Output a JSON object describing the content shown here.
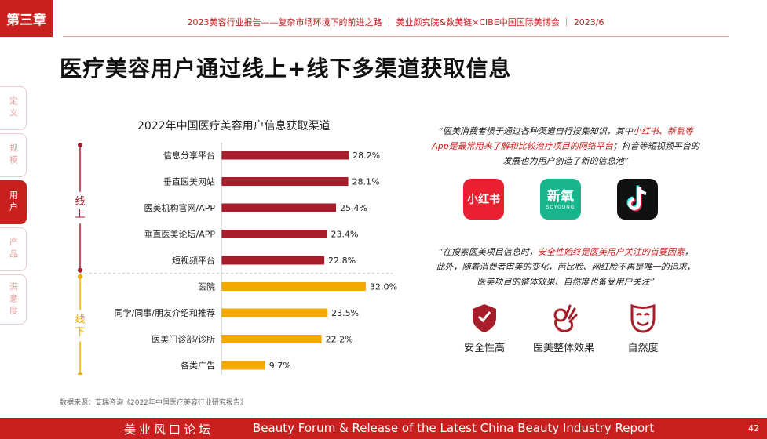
{
  "chapter": "第三章",
  "header": "2023美容行业报告——复杂市场环境下的前进之路 ｜ 美业颜究院&数美链×CIBE中国国际美博会 ｜ 2023/6",
  "title": "医疗美容用户通过线上+线下多渠道获取信息",
  "side_tabs": [
    {
      "label": "定义",
      "active": false
    },
    {
      "label": "规模",
      "active": false
    },
    {
      "label": "用户",
      "active": true
    },
    {
      "label": "产品",
      "active": false
    },
    {
      "label": "满意度",
      "active": false
    }
  ],
  "chart_data": {
    "type": "bar",
    "orientation": "horizontal",
    "title": "2022年中国医疗美容用户信息获取渠道",
    "groups": [
      {
        "name": "线上",
        "color": "#a61e2a",
        "categories": [
          "信息分享平台",
          "垂直医美网站",
          "医美机构官网/APP",
          "垂直医美论坛/APP",
          "短视频平台"
        ],
        "values": [
          28.2,
          28.1,
          25.4,
          23.4,
          22.8
        ]
      },
      {
        "name": "线下",
        "color": "#f5a800",
        "categories": [
          "医院",
          "同学/同事/朋友介绍和推荐",
          "医美门诊部/诊所",
          "各类广告"
        ],
        "values": [
          32.0,
          23.5,
          22.2,
          9.7
        ]
      }
    ],
    "value_suffix": "%",
    "xlim": [
      0,
      40
    ]
  },
  "quote1": {
    "part1": "“医美消费者惯于通过各种渠道自行搜集知识，其中",
    "highlight": "小红书、新氧等App是最常用来了解和比较治疗项目的网络平台",
    "part2": "；抖音等短视频平台的发展也为用户创造了新的信息池”"
  },
  "apps": [
    {
      "name": "小红书",
      "color": "#e8202f"
    },
    {
      "name": "新氧",
      "sub": "SOYOUNG",
      "color": "#18b48c"
    },
    {
      "name": "douyin-icon",
      "color": "#111111"
    }
  ],
  "quote2": {
    "part1": "“在搜索医美项目信息时，",
    "highlight": "安全性始终是医美用户关注的首要因素",
    "part2": "，此外，随着消费者审美的变化，芭比脸、网红脸不再是唯一的追求，医美项目的整体效果、自然度也备受用户关注”"
  },
  "features": [
    {
      "label": "安全性高",
      "icon": "shield-icon"
    },
    {
      "label": "医美整体效果",
      "icon": "ok-hand-icon"
    },
    {
      "label": "自然度",
      "icon": "mask-icon"
    }
  ],
  "source": "数据来源：艾瑞咨询《2022年中国医疗美容行业研究报告》",
  "footer": {
    "left": "美业风口论坛",
    "center": "Beauty Forum & Release of the Latest China Beauty Industry Report",
    "page": "42"
  }
}
